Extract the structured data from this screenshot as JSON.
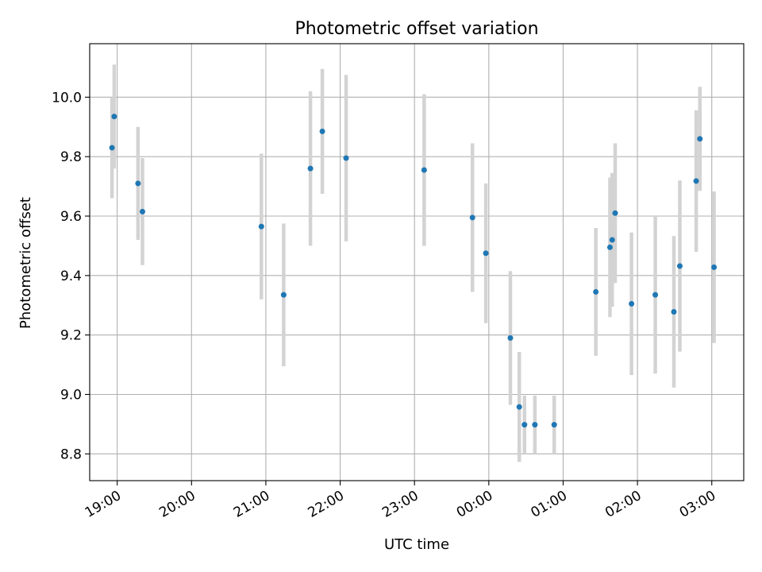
{
  "chart_data": {
    "type": "scatter",
    "title": "Photometric offset variation",
    "xlabel": "UTC time",
    "ylabel": "Photometric offset",
    "x_unit": "UTC clock time (hours past 18:00 of the first night; values above 24 wrap past midnight)",
    "xlim": [
      18.63,
      27.43
    ],
    "ylim": [
      8.71,
      10.18
    ],
    "x_ticks": [
      {
        "value": 19,
        "label": "19:00"
      },
      {
        "value": 20,
        "label": "20:00"
      },
      {
        "value": 21,
        "label": "21:00"
      },
      {
        "value": 22,
        "label": "22:00"
      },
      {
        "value": 23,
        "label": "23:00"
      },
      {
        "value": 24,
        "label": "00:00"
      },
      {
        "value": 25,
        "label": "01:00"
      },
      {
        "value": 26,
        "label": "02:00"
      },
      {
        "value": 27,
        "label": "03:00"
      }
    ],
    "y_ticks": [
      {
        "value": 8.8,
        "label": "8.8"
      },
      {
        "value": 9.0,
        "label": "9.0"
      },
      {
        "value": 9.2,
        "label": "9.2"
      },
      {
        "value": 9.4,
        "label": "9.4"
      },
      {
        "value": 9.6,
        "label": "9.6"
      },
      {
        "value": 9.8,
        "label": "9.8"
      },
      {
        "value": 10.0,
        "label": "10.0"
      }
    ],
    "grid": true,
    "marker_color": "#1f77b4",
    "errorbar_color": "#d3d3d3",
    "points": [
      {
        "x": 18.93,
        "y": 9.83,
        "err": 0.17
      },
      {
        "x": 18.96,
        "y": 9.935,
        "err": 0.175
      },
      {
        "x": 19.28,
        "y": 9.71,
        "err": 0.19
      },
      {
        "x": 19.34,
        "y": 9.615,
        "err": 0.18
      },
      {
        "x": 20.94,
        "y": 9.565,
        "err": 0.245
      },
      {
        "x": 21.24,
        "y": 9.335,
        "err": 0.24
      },
      {
        "x": 21.6,
        "y": 9.76,
        "err": 0.26
      },
      {
        "x": 21.76,
        "y": 9.885,
        "err": 0.21
      },
      {
        "x": 22.08,
        "y": 9.795,
        "err": 0.28
      },
      {
        "x": 23.13,
        "y": 9.755,
        "err": 0.255
      },
      {
        "x": 23.78,
        "y": 9.595,
        "err": 0.25
      },
      {
        "x": 23.96,
        "y": 9.475,
        "err": 0.235
      },
      {
        "x": 24.29,
        "y": 9.19,
        "err": 0.225
      },
      {
        "x": 24.41,
        "y": 8.958,
        "err": 0.185
      },
      {
        "x": 24.48,
        "y": 8.898,
        "err": 0.098
      },
      {
        "x": 24.62,
        "y": 8.898,
        "err": 0.098
      },
      {
        "x": 24.88,
        "y": 8.898,
        "err": 0.098
      },
      {
        "x": 25.44,
        "y": 9.345,
        "err": 0.215
      },
      {
        "x": 25.63,
        "y": 9.495,
        "err": 0.235
      },
      {
        "x": 25.66,
        "y": 9.52,
        "err": 0.225
      },
      {
        "x": 25.7,
        "y": 9.61,
        "err": 0.235
      },
      {
        "x": 25.92,
        "y": 9.305,
        "err": 0.24
      },
      {
        "x": 26.24,
        "y": 9.335,
        "err": 0.265
      },
      {
        "x": 26.49,
        "y": 9.278,
        "err": 0.255
      },
      {
        "x": 26.57,
        "y": 9.432,
        "err": 0.288
      },
      {
        "x": 26.79,
        "y": 9.718,
        "err": 0.238
      },
      {
        "x": 26.84,
        "y": 9.86,
        "err": 0.175
      },
      {
        "x": 27.03,
        "y": 9.428,
        "err": 0.255
      }
    ]
  }
}
